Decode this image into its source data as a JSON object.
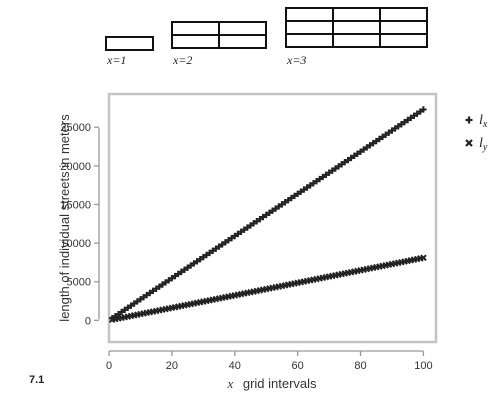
{
  "figure_label": "7.1",
  "grid_examples": [
    {
      "label": "x=1",
      "rows": 1,
      "cols": 1
    },
    {
      "label": "x=2",
      "rows": 2,
      "cols": 2
    },
    {
      "label": "x=3",
      "rows": 3,
      "cols": 3
    }
  ],
  "chart_data": {
    "type": "scatter",
    "xlabel_var": "x",
    "xlabel": "grid intervals",
    "ylabel": "length of individual streets in meters",
    "xlim": [
      0,
      104
    ],
    "ylim": [
      -2800,
      29300
    ],
    "xticks": [
      0,
      20,
      40,
      60,
      80,
      100
    ],
    "yticks": [
      0,
      5000,
      10000,
      15000,
      20000,
      25000
    ],
    "grid": false,
    "legend_position": "right",
    "series": [
      {
        "name": "l",
        "subscript": "x",
        "marker": "plus",
        "color": "#222222",
        "x_range": [
          1,
          100
        ],
        "y_start": 270,
        "y_end": 27300
      },
      {
        "name": "l",
        "subscript": "y",
        "marker": "cross",
        "color": "#222222",
        "x_range": [
          1,
          100
        ],
        "y_start": 80,
        "y_end": 8100
      }
    ]
  }
}
